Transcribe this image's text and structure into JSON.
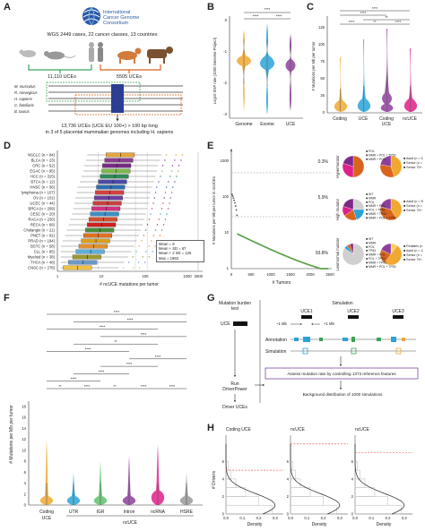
{
  "panel_a": {
    "letter": "A",
    "logo_lines": [
      "International",
      "Cancer Genome",
      "Consortium"
    ],
    "caption": "WGS 2449 cases, 22 cancer classes, 13 countries",
    "uce_left": "11,110 UCEs",
    "uce_right": "5505 UCEs",
    "species": [
      "M. musculus",
      "R. norvegicus",
      "H. sapiens",
      "C. familiaris",
      "B. taurus"
    ],
    "footer1": "13,736 UCEs (UCE EU 100+) > 100 bp long",
    "footer2": "in 3 of 5 placental mammalian genomes including H. sapiens"
  },
  "panel_b": {
    "letter": "B",
    "ylabel": "Log10 SNP rate (1000 Genome Project)",
    "yticks": [
      "0",
      "-1",
      "-2",
      "-3"
    ],
    "categories": [
      "Genome",
      "Exome",
      "UCE"
    ],
    "sig_labels": [
      "****",
      "****",
      "****"
    ],
    "colors": [
      "#f0a830",
      "#2aa3d6",
      "#8e3f9b"
    ]
  },
  "panel_c": {
    "letter": "C",
    "ylabel": "# Mutations per Mb per tumor",
    "yticks": [
      "0",
      "25",
      "50",
      "75",
      "100",
      "125"
    ],
    "categories": [
      "Coding",
      "UCE",
      "Coding\nUCE",
      "ncUCE"
    ],
    "xlabel_main": [
      "Coding",
      "UCE",
      "Coding",
      "ncUCE"
    ],
    "xlabel_sub": "UCE",
    "sig_labels": [
      "****",
      "****",
      "**",
      "****",
      "**",
      "****"
    ],
    "colors": [
      "#f0a830",
      "#2aa3d6",
      "#8e3f9b",
      "#e0208a"
    ]
  },
  "panel_d": {
    "letter": "D",
    "xlabel": "# ncUCE mutations per tumor",
    "xticks": [
      "1",
      "10",
      "100",
      "1000",
      "2500"
    ],
    "cancers": [
      "NSCLC (n = 84)",
      "BLCA (n = 23)",
      "CRC (n = 52)",
      "EGAC (n = 95)",
      "HCC (n = 315)",
      "BTCA (n = 12)",
      "HNSC (n = 56)",
      "lymphoma (n = 107)",
      "OV (n = 101)",
      "UCEC (n = 44)",
      "BRCA (n = 209)",
      "CESC (n = 20)",
      "RACA (n = 230)",
      "RECA (n = 68)",
      "Cholangio (n = 21)",
      "PNET (n = 81)",
      "PRAD (n = 194)",
      "BSTC (n = 58)",
      "CLL (n = 95)",
      "Myeloid (n = 38)",
      "THCA (n = 48)",
      "CNSC (n = 278)"
    ],
    "legend": [
      "Mean = 9",
      "Mean + SD = 67",
      "Mean + 2 SD = 126",
      "Max = 1963"
    ],
    "box_colors": [
      "#e8a33a",
      "#8b3b8f",
      "#7a2a85",
      "#7db84a",
      "#2e8b57",
      "#4a4aa8",
      "#2f6db3",
      "#d44040",
      "#6c3fa0",
      "#c94040",
      "#d43080",
      "#3d8fc4",
      "#d05030",
      "#d02020",
      "#4a8c3a",
      "#e07020",
      "#d9a020",
      "#e09030",
      "#5ab0d8",
      "#9a9a30",
      "#6a9ac8",
      "#f0c040"
    ]
  },
  "panel_e": {
    "letter": "E",
    "ylabel": "# Mutations per Mb per tumor in ncUCEs",
    "xlabel": "# Tumors",
    "yticks": [
      "1",
      "10",
      "100",
      "1000"
    ],
    "xticks": [
      "0",
      "500",
      "1000",
      "1500",
      "2000",
      "2500"
    ],
    "pct_labels": [
      "0.3%",
      "5.9%",
      "93.8%"
    ],
    "group_labels": [
      "Hypermutator",
      "High mutator",
      "Low/normal mutator"
    ],
    "pie_groups": [
      {
        "legend1": [
          "POL",
          "MMR + POL + TP53",
          "MMR + POL"
        ],
        "legend2": [
          "Adult (n = 4)",
          "Senior (n = 3)",
          "Senior 75+ (n = 2)"
        ]
      },
      {
        "legend1": [
          "WT",
          "MMR",
          "POL",
          "MMR + POL",
          "POL + TP53",
          "MMR + TP53",
          "MMR + POL + TP53"
        ],
        "legend2": [
          "Adult (n = 59)",
          "Senior (n = 55)",
          "Senior 75+ (n = 29)"
        ]
      },
      {
        "legend1": [
          "WT",
          "MMR",
          "POL",
          "TP53",
          "MMR + POL",
          "POL + TP53",
          "MMR + TP53",
          "MMR + POL + TP53"
        ],
        "legend2": [
          "Pediatric (n = 225)",
          "Adult (n = 1142)",
          "Senior (n = 518)",
          "Senior 75+ (n = 410)"
        ]
      }
    ]
  },
  "panel_f": {
    "letter": "F",
    "ylabel": "# Mutations per Mb per tumor",
    "yticks": [
      "0",
      "2",
      "4",
      "6",
      "8",
      "10",
      "12",
      "14",
      "16",
      "18"
    ],
    "categories": [
      "Coding\nUCE",
      "UTR",
      "IGR",
      "Intron",
      "ncRNA",
      "HSRE"
    ],
    "xlabel_main": [
      "Coding",
      "UTR",
      "IGR",
      "Intron",
      "ncRNA",
      "HSRE"
    ],
    "xlabel_sub": "UCE",
    "group_label": "ncUCE",
    "sig_labels": [
      "**",
      "****",
      "**",
      "****",
      "****",
      "****",
      "****",
      "****",
      "****",
      "****",
      "**",
      "****",
      "****",
      "****",
      "****"
    ],
    "colors": [
      "#f0a830",
      "#2aa3d6",
      "#5cc36a",
      "#8e3f9b",
      "#e0208a",
      "#999999"
    ]
  },
  "panel_g": {
    "letter": "G",
    "mutation_burden": "Mutation burden\ntest",
    "uce_label": "UCE",
    "run_label": "Run\nDriverPower",
    "driver_uces": "Driver UCEs",
    "simulation": "Simulation",
    "uce_tracks": [
      "UCE1",
      "UCE2",
      "UCE3"
    ],
    "mb_left": "~1 Mb",
    "mb_right": "+1 Mb",
    "annotation": "Annotation",
    "sim_label": "Simulation",
    "assess": "Assess mutation rate by controlling 1373 reference features",
    "background": "Background distribution of 1000 simulations"
  },
  "panel_h": {
    "letter": "H",
    "titles": [
      "Coding UCE",
      "ncUCE",
      "ncUCE"
    ],
    "ylabel": "# Drivers",
    "xlabel": "Density",
    "xticks": [
      "0.0",
      "0.1",
      "0.2",
      "0.3"
    ],
    "yticks": [
      "0",
      "2",
      "4",
      "6"
    ]
  },
  "chart_data": [
    {
      "type": "violin",
      "panel": "B",
      "categories": [
        "Genome",
        "Exome",
        "UCE"
      ],
      "medians": [
        -1.8,
        -1.7,
        -1.9
      ],
      "ylim": [
        -3.3,
        0.2
      ]
    },
    {
      "type": "violin",
      "panel": "C",
      "categories": [
        "Coding",
        "UCE",
        "Coding UCE",
        "ncUCE"
      ],
      "medians": [
        3,
        4,
        6,
        3
      ],
      "ylim": [
        0,
        140
      ]
    },
    {
      "type": "box",
      "panel": "D",
      "scale": "log",
      "xlim": [
        1,
        2500
      ]
    },
    {
      "type": "scatter",
      "panel": "E",
      "scale_y": "log",
      "xlim": [
        0,
        2500
      ],
      "thresholds": [
        126,
        9
      ]
    },
    {
      "type": "violin",
      "panel": "F",
      "categories": [
        "Coding UCE",
        "UTR",
        "IGR",
        "Intron",
        "ncRNA",
        "HSRE"
      ],
      "ylim": [
        0,
        18
      ]
    },
    {
      "type": "histogram",
      "panel": "H",
      "series": [
        {
          "name": "Coding UCE",
          "observed": 5
        },
        {
          "name": "ncUCE",
          "observed": 8
        },
        {
          "name": "ncUCE",
          "observed": 7
        }
      ]
    }
  ]
}
